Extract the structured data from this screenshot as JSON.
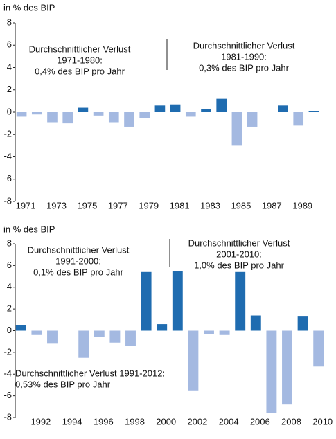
{
  "chart_data": [
    {
      "type": "bar",
      "y_label": "in % des BIP",
      "categories": [
        "1971",
        null,
        "1973",
        null,
        "1975",
        null,
        "1977",
        null,
        "1979",
        null,
        "1981",
        null,
        "1983",
        null,
        "1985",
        null,
        "1987",
        null,
        "1989",
        null
      ],
      "values": [
        -0.4,
        -0.2,
        -0.9,
        -1.0,
        0.4,
        -0.3,
        -0.9,
        -1.3,
        -0.5,
        0.6,
        0.7,
        -0.4,
        0.3,
        1.2,
        -3.0,
        -1.3,
        0,
        0.6,
        -1.2,
        0.1
      ],
      "positive_color": "#1f6cb0",
      "negative_color": "#a4b9e1",
      "ylim": [
        -8,
        8
      ],
      "yticks": [
        8,
        6,
        4,
        2,
        0,
        -2,
        -4,
        -6,
        -8
      ],
      "annotations": [
        {
          "lines": [
            "Durchschnittlicher Verlust",
            "1971-1980:",
            "0,4% des BIP pro Jahr"
          ]
        },
        {
          "lines": [
            "Durchschnittlicher Verlust",
            "1981-1990:",
            "0,3% des BIP pro Jahr"
          ]
        }
      ]
    },
    {
      "type": "bar",
      "y_label": "in % des BIP",
      "categories": [
        null,
        "1992",
        null,
        "1994",
        null,
        "1996",
        null,
        "1998",
        null,
        "2000",
        null,
        "2002",
        null,
        "2004",
        null,
        "2006",
        null,
        "2008",
        null,
        "2010"
      ],
      "values": [
        0.5,
        -0.4,
        -1.2,
        0.0,
        -2.5,
        -0.6,
        -1.1,
        -1.4,
        5.4,
        0.6,
        5.5,
        -5.5,
        -0.3,
        -0.4,
        5.4,
        1.4,
        -7.6,
        -6.8,
        1.3,
        -3.3
      ],
      "positive_color": "#1f6cb0",
      "negative_color": "#a4b9e1",
      "ylim": [
        -8,
        8
      ],
      "yticks": [
        8,
        6,
        4,
        2,
        0,
        -2,
        -4,
        -6,
        -8
      ],
      "annotations": [
        {
          "lines": [
            "Durchschnittlicher Verlust",
            "1991-2000:",
            "0,1% des BIP pro Jahr"
          ]
        },
        {
          "lines": [
            "Durchschnittlicher Verlust",
            "2001-2010:",
            "1,0% des BIP pro Jahr"
          ]
        },
        {
          "lines": [
            "Durchschnittlicher Verlust 1991-2012:",
            "0,53% des BIP pro Jahr"
          ]
        }
      ]
    }
  ]
}
